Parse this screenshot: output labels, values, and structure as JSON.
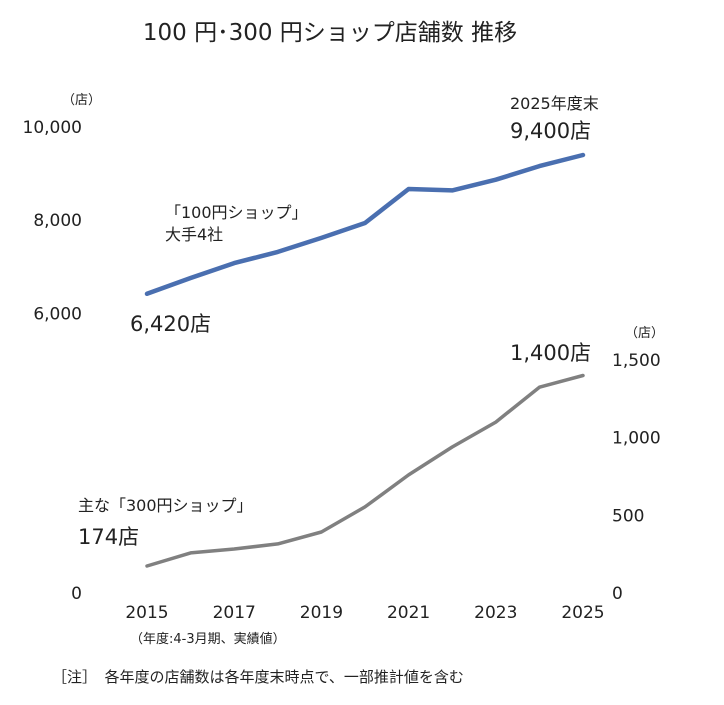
{
  "chart_data": {
    "type": "line",
    "title": "100 円･300 円ショップ店舗数 推移",
    "x": [
      2015,
      2016,
      2017,
      2018,
      2019,
      2020,
      2021,
      2022,
      2023,
      2024,
      2025
    ],
    "x_tick_labels": [
      "2015",
      "2017",
      "2019",
      "2021",
      "2023",
      "2025"
    ],
    "x_note": "（年度:4-3月期、実績値）",
    "left_axis": {
      "unit": "（店）",
      "range": [
        0,
        10000
      ],
      "tick_labels": [
        "0",
        "6,000",
        "8,000",
        "10,000"
      ],
      "ticks": [
        0,
        6000,
        8000,
        10000
      ]
    },
    "right_axis": {
      "unit": "（店）",
      "range": [
        0,
        1500
      ],
      "tick_labels": [
        "0",
        "500",
        "1,000",
        "1,500"
      ],
      "ticks": [
        0,
        500,
        1000,
        1500
      ]
    },
    "grid": false,
    "series": [
      {
        "name": "「100円ショップ」大手4社",
        "name_lines": [
          "「100円ショップ」",
          "大手4社"
        ],
        "axis": "left",
        "color": "#4a6fb0",
        "values": [
          6420,
          6760,
          7080,
          7320,
          7620,
          7940,
          8670,
          8640,
          8870,
          9160,
          9400
        ]
      },
      {
        "name": "主な「300円ショップ」",
        "axis": "right",
        "color": "#808080",
        "values": [
          174,
          258,
          283,
          316,
          393,
          554,
          760,
          940,
          1100,
          1325,
          1400
        ]
      }
    ],
    "annotations": {
      "blue_start": "6,420店",
      "blue_end_label": "2025年度末",
      "blue_end": "9,400店",
      "gray_start": "174店",
      "gray_end": "1,400店"
    },
    "footnote": "［注］　各年度の店舗数は各年度末時点で、一部推計値を含む"
  }
}
